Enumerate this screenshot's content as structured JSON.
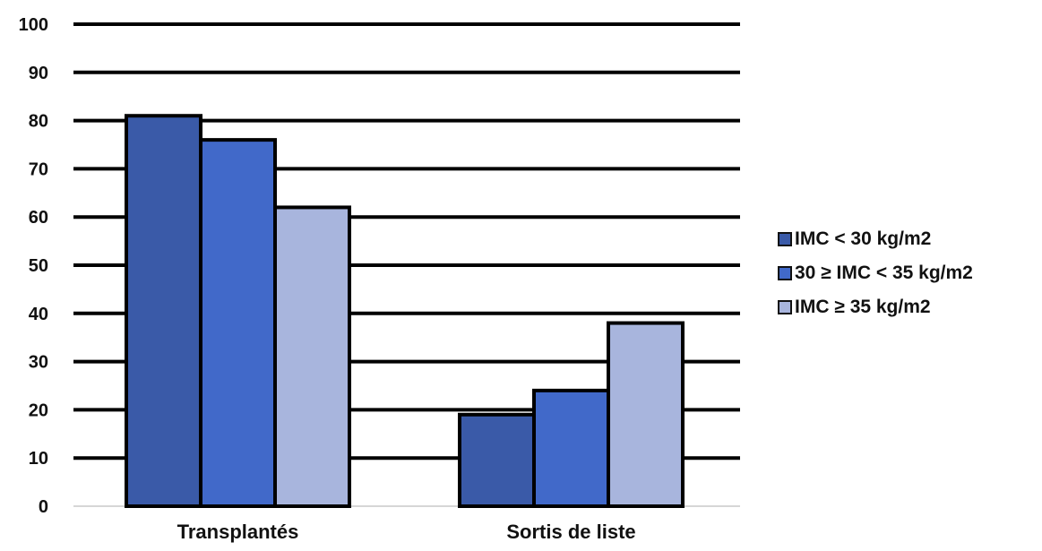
{
  "chart_data": {
    "type": "bar",
    "title": "",
    "xlabel": "",
    "ylabel": "",
    "categories": [
      "Transplantés",
      "Sortis de liste"
    ],
    "series": [
      {
        "name": "IMC < 30 kg/m2",
        "values": [
          81,
          19
        ],
        "color": "#3a5aa8"
      },
      {
        "name": "30 ≥ IMC < 35 kg/m2",
        "values": [
          76,
          24
        ],
        "color": "#4169c9"
      },
      {
        "name": "IMC ≥ 35 kg/m2",
        "values": [
          62,
          38
        ],
        "color": "#a8b5dd"
      }
    ],
    "ylim": [
      0,
      100
    ],
    "yticks": [
      "0",
      "10",
      "20",
      "30",
      "40",
      "50",
      "60",
      "70",
      "80",
      "90",
      "100"
    ],
    "grid": true,
    "legend_position": "right"
  }
}
